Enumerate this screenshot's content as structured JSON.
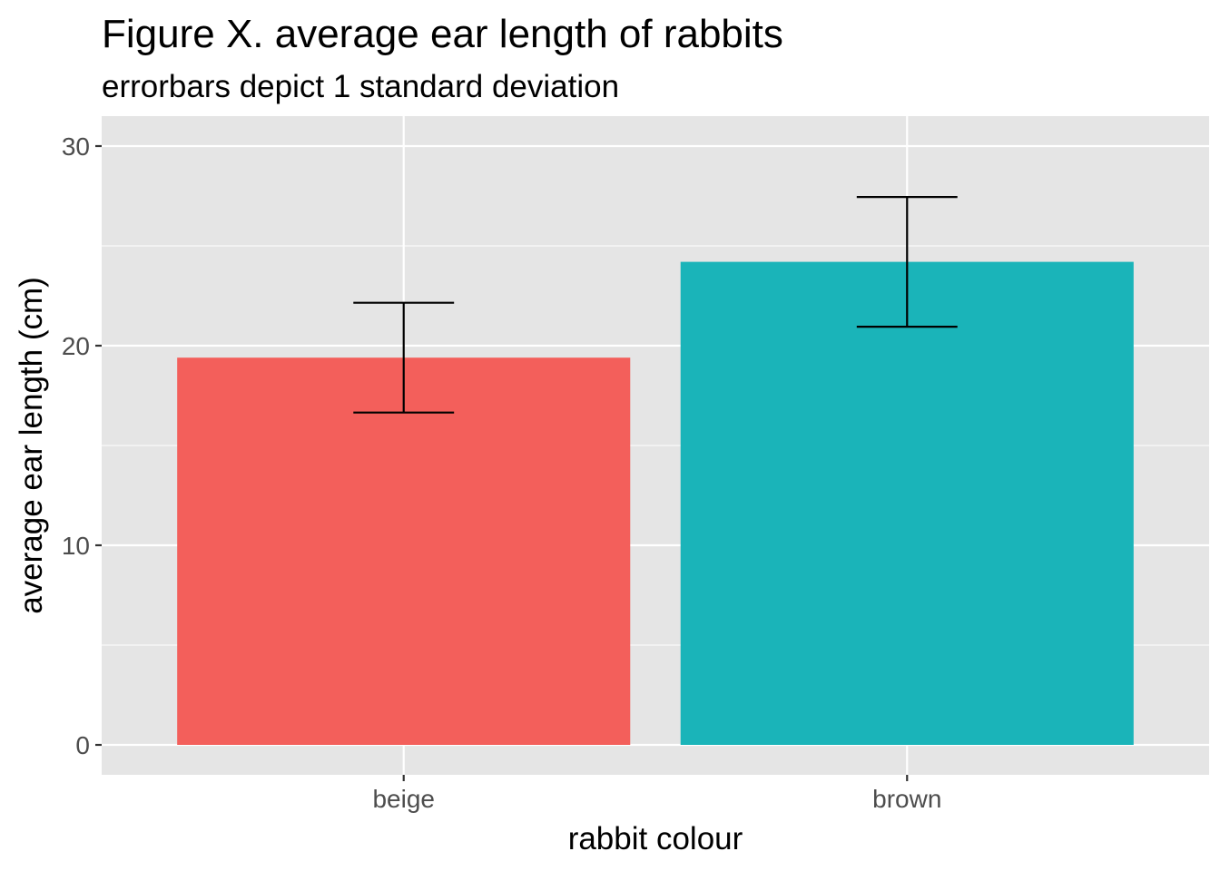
{
  "chart_data": {
    "type": "bar",
    "title": "Figure X. average ear length of rabbits",
    "subtitle": "errorbars depict 1 standard deviation",
    "xlabel": "rabbit colour",
    "ylabel": "average ear length (cm)",
    "categories": [
      "beige",
      "brown"
    ],
    "values": [
      19.4,
      24.2
    ],
    "error_sd": [
      2.75,
      3.25
    ],
    "colors": [
      "#F8766D",
      "#00BFC4"
    ],
    "bar_colors": [
      "#F35F5B",
      "#1AB4B9"
    ],
    "ylim": [
      -1.5,
      31.5
    ],
    "yticks": [
      0,
      10,
      20,
      30
    ],
    "ytick_labels": [
      "0",
      "10",
      "20",
      "30"
    ],
    "grid": true,
    "legend": "none",
    "panel_background": "#E5E5E5",
    "gridline_color": "#FFFFFF",
    "errorbar_color": "#000000"
  }
}
